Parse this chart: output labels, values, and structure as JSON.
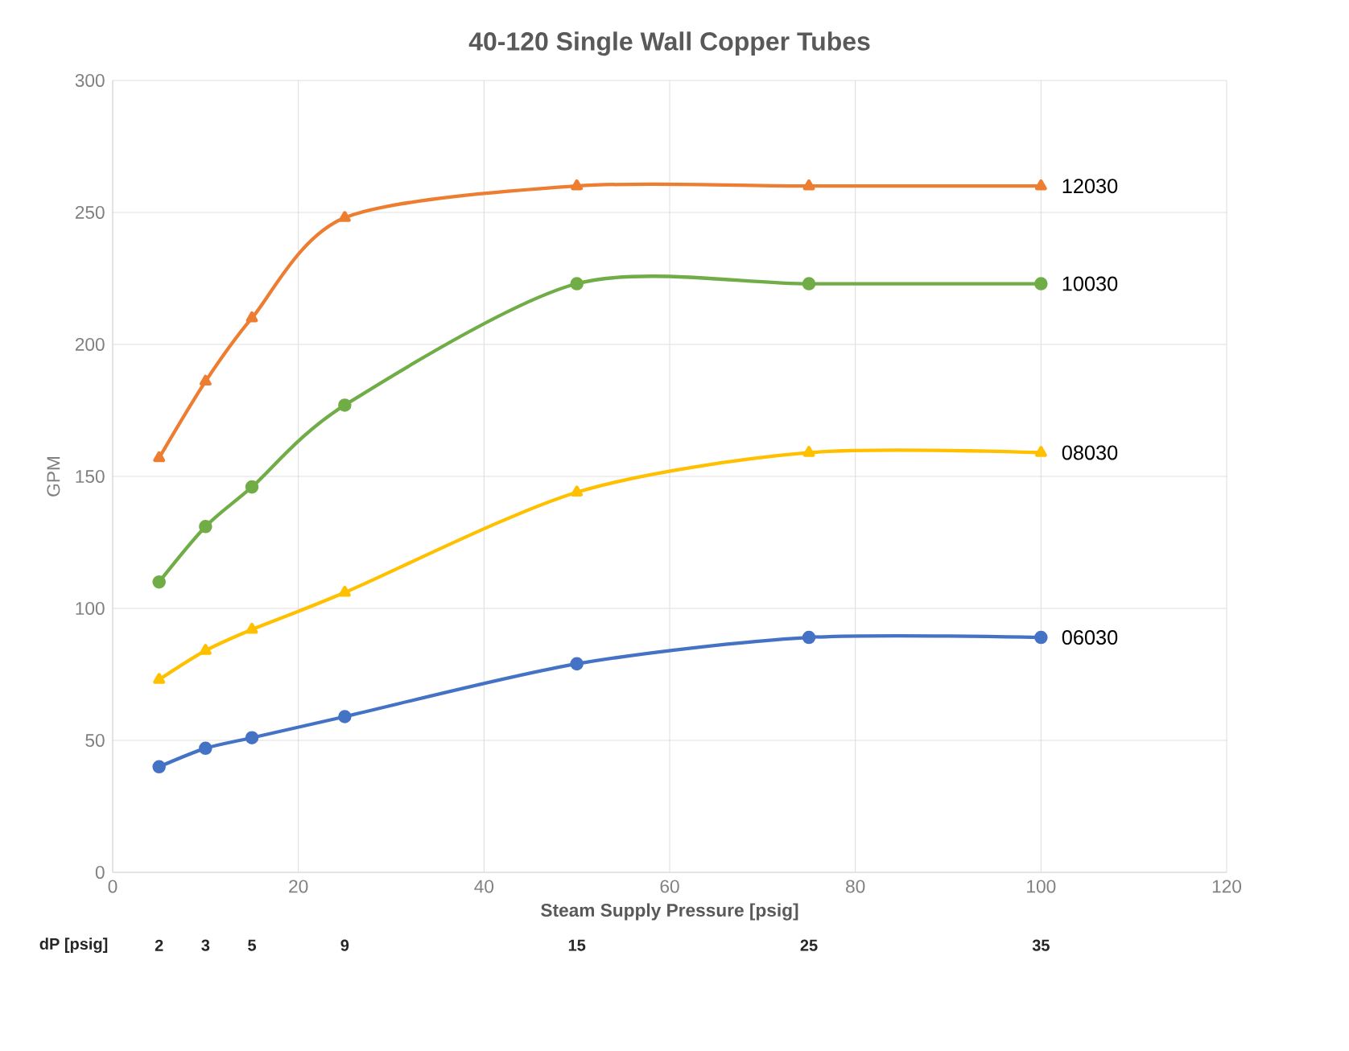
{
  "chart_data": {
    "type": "line",
    "title": "40-120 Single Wall Copper Tubes",
    "xlabel": "Steam Supply Pressure [psig]",
    "ylabel": "GPM",
    "x": [
      5,
      10,
      15,
      25,
      50,
      75,
      100
    ],
    "xlim": [
      0,
      120
    ],
    "xticks": [
      0,
      20,
      40,
      60,
      80,
      100,
      120
    ],
    "ylim": [
      0,
      300
    ],
    "yticks": [
      0,
      50,
      100,
      150,
      200,
      250,
      300
    ],
    "grid": true,
    "legend": false,
    "line_style": "solid",
    "series": [
      {
        "name": "12030",
        "color": "#ed7d31",
        "marker": "triangle",
        "values": [
          157,
          186,
          210,
          248,
          260,
          260,
          260
        ]
      },
      {
        "name": "10030",
        "color": "#70ad47",
        "marker": "circle",
        "values": [
          110,
          131,
          146,
          177,
          223,
          223,
          223
        ]
      },
      {
        "name": "08030",
        "color": "#ffc000",
        "marker": "triangle",
        "values": [
          73,
          84,
          92,
          106,
          144,
          159,
          159
        ]
      },
      {
        "name": "06030",
        "color": "#4472c4",
        "marker": "circle",
        "values": [
          40,
          47,
          51,
          59,
          79,
          89,
          89
        ]
      }
    ],
    "annotations": [
      "dP [psig]",
      "2",
      "3",
      "5",
      "9",
      "15",
      "25",
      "35"
    ]
  }
}
